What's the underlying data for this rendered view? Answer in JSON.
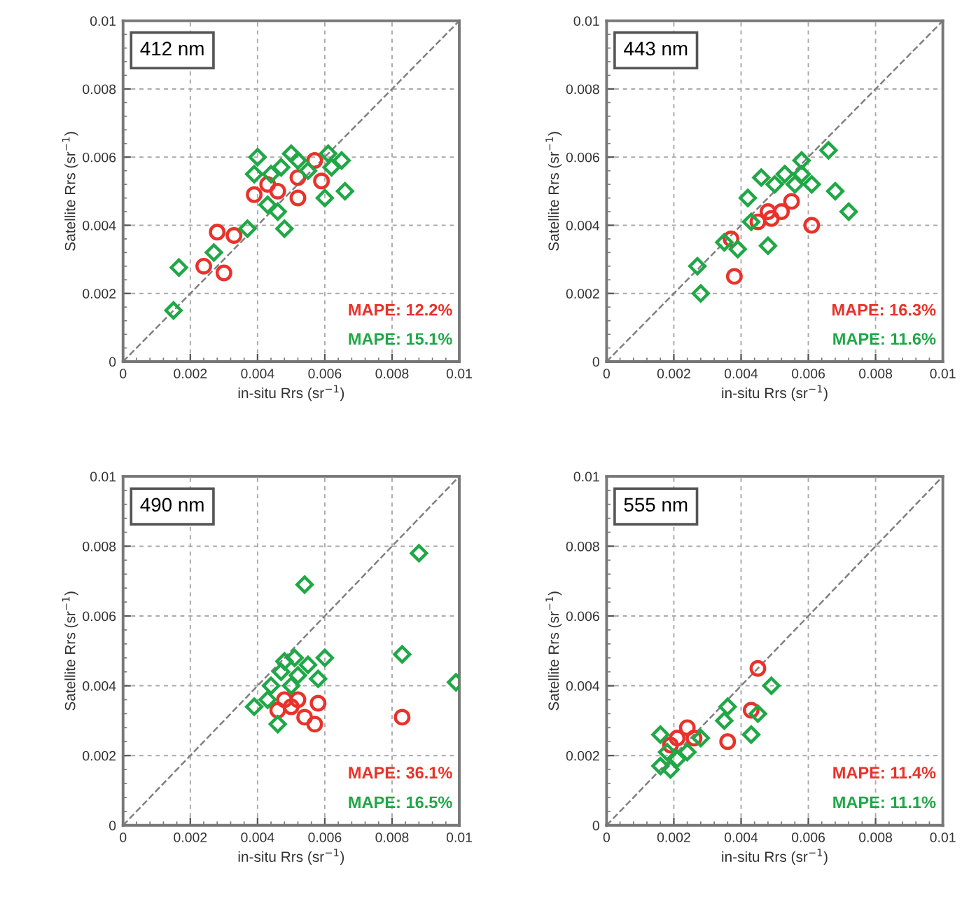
{
  "chart_data": [
    {
      "type": "scatter",
      "title": "412 nm",
      "xlabel": "in-situ Rrs (sr$^{−1}$)",
      "ylabel": "Satellite Rrs (sr$^{−1}$)",
      "xlim": [
        0,
        0.01
      ],
      "ylim": [
        0,
        0.01
      ],
      "xticks": [
        0,
        0.002,
        0.004,
        0.006,
        0.008,
        0.01
      ],
      "yticks": [
        0,
        0.002,
        0.004,
        0.006,
        0.008,
        0.01
      ],
      "grid": true,
      "annotations": [
        "MAPE: 12.2%",
        "MAPE: 15.1%"
      ],
      "series": [
        {
          "color": "#e8322a",
          "marker": "circle",
          "x": [
            0.0028,
            0.0033,
            0.0024,
            0.003,
            0.0039,
            0.0046,
            0.0052,
            0.0052,
            0.0059,
            0.0057,
            0.0043
          ],
          "values": [
            0.0038,
            0.0037,
            0.0028,
            0.0026,
            0.0049,
            0.005,
            0.0048,
            0.0054,
            0.0053,
            0.0059,
            0.0052
          ]
        },
        {
          "color": "#1fa846",
          "marker": "diamond",
          "x": [
            0.0015,
            0.00166,
            0.0027,
            0.0037,
            0.0048,
            0.004,
            0.005,
            0.0061,
            0.0065,
            0.0066,
            0.006,
            0.0044,
            0.0039,
            0.0043,
            0.0046,
            0.0055,
            0.0052,
            0.0062,
            0.0047
          ],
          "values": [
            0.0015,
            0.00276,
            0.0032,
            0.0039,
            0.0039,
            0.006,
            0.0061,
            0.0061,
            0.0059,
            0.005,
            0.0048,
            0.0055,
            0.0055,
            0.0046,
            0.0044,
            0.0056,
            0.0059,
            0.0057,
            0.0057
          ]
        },
        {
          "type": "line",
          "color": "#808080",
          "line_style": "dashed",
          "marker": "none",
          "x": [
            0,
            0.01
          ],
          "values": [
            0,
            0.01
          ]
        }
      ]
    },
    {
      "type": "scatter",
      "title": "443 nm",
      "xlabel": "in-situ Rrs (sr$^{−1}$)",
      "ylabel": "Satellite Rrs (sr$^{−1}$)",
      "xlim": [
        0,
        0.01
      ],
      "ylim": [
        0,
        0.01
      ],
      "xticks": [
        0,
        0.002,
        0.004,
        0.006,
        0.008,
        0.01
      ],
      "yticks": [
        0,
        0.002,
        0.004,
        0.006,
        0.008,
        0.01
      ],
      "grid": true,
      "annotations": [
        "MAPE: 16.3%",
        "MAPE: 11.6%"
      ],
      "series": [
        {
          "color": "#e8322a",
          "marker": "circle",
          "x": [
            0.0037,
            0.0038,
            0.0049,
            0.0052,
            0.0055,
            0.0061,
            0.0045,
            0.0048
          ],
          "values": [
            0.0036,
            0.0025,
            0.0042,
            0.0044,
            0.0047,
            0.004,
            0.0041,
            0.0044
          ]
        },
        {
          "color": "#1fa846",
          "marker": "diamond",
          "x": [
            0.0027,
            0.0028,
            0.0035,
            0.0039,
            0.0048,
            0.0058,
            0.0066,
            0.0068,
            0.0072,
            0.0046,
            0.005,
            0.0056,
            0.0061,
            0.0042,
            0.0043,
            0.0053,
            0.0058
          ],
          "values": [
            0.0028,
            0.002,
            0.0035,
            0.0033,
            0.0034,
            0.0059,
            0.0062,
            0.005,
            0.0044,
            0.0054,
            0.0052,
            0.0052,
            0.0052,
            0.0048,
            0.0041,
            0.0055,
            0.0055
          ]
        },
        {
          "type": "line",
          "color": "#808080",
          "line_style": "dashed",
          "marker": "none",
          "x": [
            0,
            0.01
          ],
          "values": [
            0,
            0.01
          ]
        }
      ]
    },
    {
      "type": "scatter",
      "title": "490 nm",
      "xlabel": "in-situ Rrs (sr$^{−1}$)",
      "ylabel": "Satellite Rrs (sr$^{−1}$)",
      "xlim": [
        0,
        0.01
      ],
      "ylim": [
        0,
        0.01
      ],
      "xticks": [
        0,
        0.002,
        0.004,
        0.006,
        0.008,
        0.01
      ],
      "yticks": [
        0,
        0.002,
        0.004,
        0.006,
        0.008,
        0.01
      ],
      "grid": true,
      "annotations": [
        "MAPE: 36.1%",
        "MAPE: 16.5%"
      ],
      "series": [
        {
          "color": "#e8322a",
          "marker": "circle",
          "x": [
            0.0083,
            0.0046,
            0.005,
            0.0054,
            0.0058,
            0.0057,
            0.0048,
            0.0052
          ],
          "values": [
            0.0031,
            0.0033,
            0.0034,
            0.0031,
            0.0035,
            0.0029,
            0.0036,
            0.0036
          ]
        },
        {
          "color": "#1fa846",
          "marker": "diamond",
          "x": [
            0.0054,
            0.0088,
            0.0083,
            0.0099,
            0.006,
            0.0039,
            0.0046,
            0.0047,
            0.0051,
            0.0055,
            0.0058,
            0.0044,
            0.005,
            0.0043,
            0.0052,
            0.0048
          ],
          "values": [
            0.0069,
            0.0078,
            0.0049,
            0.0041,
            0.0048,
            0.0034,
            0.0029,
            0.0044,
            0.0048,
            0.0046,
            0.0042,
            0.004,
            0.004,
            0.0036,
            0.0043,
            0.0047
          ]
        },
        {
          "type": "line",
          "color": "#808080",
          "line_style": "dashed",
          "marker": "none",
          "x": [
            0,
            0.01
          ],
          "values": [
            0,
            0.01
          ]
        }
      ]
    },
    {
      "type": "scatter",
      "title": "555 nm",
      "xlabel": "in-situ Rrs (sr$^{−1}$)",
      "ylabel": "Satellite Rrs (sr$^{−1}$)",
      "xlim": [
        0,
        0.01
      ],
      "ylim": [
        0,
        0.01
      ],
      "xticks": [
        0,
        0.002,
        0.004,
        0.006,
        0.008,
        0.01
      ],
      "yticks": [
        0,
        0.002,
        0.004,
        0.006,
        0.008,
        0.01
      ],
      "grid": true,
      "annotations": [
        "MAPE: 11.4%",
        "MAPE: 11.1%"
      ],
      "series": [
        {
          "color": "#e8322a",
          "marker": "circle",
          "x": [
            0.0045,
            0.0043,
            0.0036,
            0.0019,
            0.0021,
            0.0024,
            0.0026
          ],
          "values": [
            0.0045,
            0.0033,
            0.0024,
            0.0023,
            0.0025,
            0.0028,
            0.0025
          ]
        },
        {
          "color": "#1fa846",
          "marker": "diamond",
          "x": [
            0.0049,
            0.0036,
            0.0035,
            0.0043,
            0.0045,
            0.0016,
            0.0019,
            0.0021,
            0.0016,
            0.0024,
            0.0028,
            0.0018
          ],
          "values": [
            0.004,
            0.0034,
            0.003,
            0.0026,
            0.0032,
            0.0017,
            0.0016,
            0.0019,
            0.0026,
            0.0021,
            0.0025,
            0.0021
          ]
        },
        {
          "type": "line",
          "color": "#808080",
          "line_style": "dashed",
          "marker": "none",
          "x": [
            0,
            0.01
          ],
          "values": [
            0,
            0.01
          ]
        }
      ]
    }
  ]
}
